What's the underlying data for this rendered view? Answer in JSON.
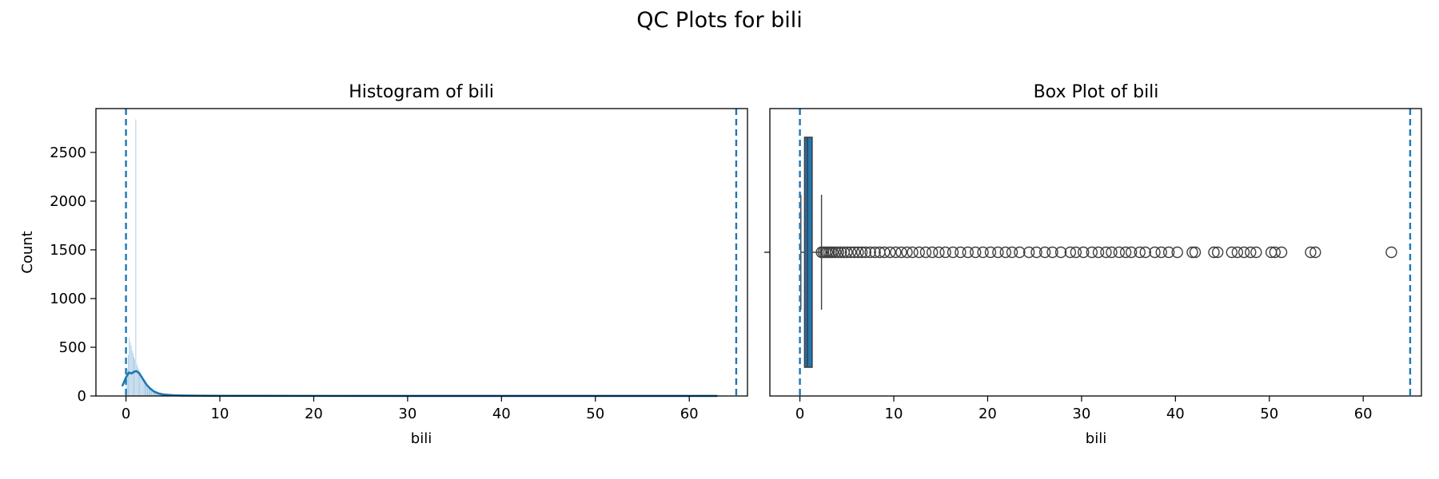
{
  "figure": {
    "title": "QC Plots for bili"
  },
  "colors": {
    "accent": "#1f77b4",
    "box_edge": "#3f3f3f",
    "hist_fill": "#a6c8e4",
    "axis": "#000000"
  },
  "chart_data": [
    {
      "type": "bar",
      "subtype": "histogram_with_kde",
      "title": "Histogram of bili",
      "xlabel": "bili",
      "ylabel": "Count",
      "xlim": [
        -3.2,
        66.2
      ],
      "ylim": [
        0,
        2950
      ],
      "xticks": [
        0,
        10,
        20,
        30,
        40,
        50,
        60
      ],
      "xtick_labels": [
        "0",
        "10",
        "20",
        "30",
        "40",
        "50",
        "60"
      ],
      "yticks": [
        0,
        500,
        1000,
        1500,
        2000,
        2500
      ],
      "ytick_labels": [
        "0",
        "500",
        "1000",
        "1500",
        "2000",
        "2500"
      ],
      "grid": false,
      "bins": [
        {
          "x": 0.0,
          "count": 150
        },
        {
          "x": 0.1,
          "count": 280
        },
        {
          "x": 0.2,
          "count": 420
        },
        {
          "x": 0.3,
          "count": 600
        },
        {
          "x": 0.4,
          "count": 560
        },
        {
          "x": 0.5,
          "count": 520
        },
        {
          "x": 0.6,
          "count": 470
        },
        {
          "x": 0.7,
          "count": 440
        },
        {
          "x": 0.8,
          "count": 400
        },
        {
          "x": 0.9,
          "count": 380
        },
        {
          "x": 1.0,
          "count": 2840
        },
        {
          "x": 1.1,
          "count": 330
        },
        {
          "x": 1.2,
          "count": 300
        },
        {
          "x": 1.3,
          "count": 280
        },
        {
          "x": 1.4,
          "count": 250
        },
        {
          "x": 1.5,
          "count": 220
        },
        {
          "x": 1.6,
          "count": 200
        },
        {
          "x": 1.7,
          "count": 180
        },
        {
          "x": 1.8,
          "count": 160
        },
        {
          "x": 1.9,
          "count": 150
        },
        {
          "x": 2.0,
          "count": 130
        },
        {
          "x": 2.2,
          "count": 110
        },
        {
          "x": 2.4,
          "count": 90
        },
        {
          "x": 2.6,
          "count": 70
        },
        {
          "x": 2.8,
          "count": 60
        },
        {
          "x": 3.0,
          "count": 45
        },
        {
          "x": 3.3,
          "count": 35
        },
        {
          "x": 3.6,
          "count": 25
        },
        {
          "x": 4.0,
          "count": 20
        },
        {
          "x": 4.5,
          "count": 12
        },
        {
          "x": 5.0,
          "count": 8
        },
        {
          "x": 6.0,
          "count": 5
        },
        {
          "x": 7.0,
          "count": 4
        },
        {
          "x": 8.0,
          "count": 3
        }
      ],
      "kde": {
        "x": [
          -0.4,
          0,
          0.3,
          0.6,
          0.9,
          1.1,
          1.4,
          1.8,
          2.2,
          2.6,
          3.0,
          3.5,
          4.0,
          5.0,
          6.0,
          8.0,
          10,
          15,
          20,
          30,
          40,
          50,
          60,
          63
        ],
        "y": [
          100,
          190,
          240,
          232,
          250,
          256,
          235,
          175,
          115,
          75,
          45,
          25,
          15,
          8,
          5,
          3,
          2,
          1.5,
          1,
          0.8,
          0.5,
          0.4,
          0.3,
          0.2
        ]
      },
      "reference_lines": [
        0.0,
        65.0
      ]
    },
    {
      "type": "scatter",
      "subtype": "box_plot",
      "title": "Box Plot of bili",
      "xlabel": "bili",
      "ylabel": "",
      "xlim": [
        -3.2,
        66.2
      ],
      "xticks": [
        0,
        10,
        20,
        30,
        40,
        50,
        60
      ],
      "xtick_labels": [
        "0",
        "10",
        "20",
        "30",
        "40",
        "50",
        "60"
      ],
      "grid": false,
      "box": {
        "whisker_low": 0.1,
        "q1": 0.5,
        "median": 0.8,
        "q3": 1.3,
        "whisker_high": 2.3
      },
      "outliers": [
        2.3,
        2.5,
        2.7,
        2.9,
        3.1,
        3.3,
        3.5,
        3.8,
        4.1,
        4.4,
        4.7,
        5.0,
        5.4,
        5.8,
        6.2,
        6.6,
        7.0,
        7.5,
        8.0,
        8.5,
        9.0,
        9.6,
        10.2,
        10.8,
        11.4,
        12.0,
        12.7,
        13.4,
        14.1,
        14.8,
        15.5,
        16.3,
        17.1,
        17.9,
        18.7,
        19.5,
        20.3,
        21.1,
        21.9,
        22.6,
        23.4,
        24.4,
        25.2,
        26.1,
        26.9,
        27.8,
        28.8,
        29.4,
        30.2,
        31.1,
        31.8,
        32.6,
        33.2,
        34.0,
        34.7,
        35.3,
        36.2,
        36.8,
        37.8,
        38.5,
        39.3,
        40.2,
        41.8,
        42.1,
        44.1,
        44.5,
        46.0,
        46.6,
        47.3,
        48.0,
        48.6,
        50.2,
        50.6,
        51.3,
        54.4,
        54.9,
        63.0
      ],
      "reference_lines": [
        0.0,
        65.0
      ]
    }
  ]
}
